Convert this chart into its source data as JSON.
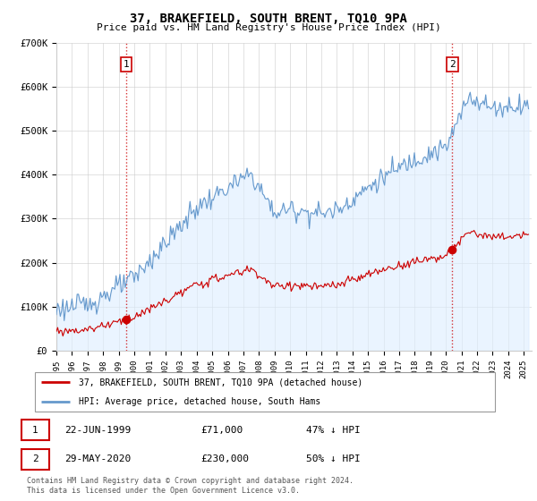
{
  "title": "37, BRAKEFIELD, SOUTH BRENT, TQ10 9PA",
  "subtitle": "Price paid vs. HM Land Registry's House Price Index (HPI)",
  "legend_line1": "37, BRAKEFIELD, SOUTH BRENT, TQ10 9PA (detached house)",
  "legend_line2": "HPI: Average price, detached house, South Hams",
  "marker1_date": "22-JUN-1999",
  "marker1_price": "£71,000",
  "marker1_hpi": "47% ↓ HPI",
  "marker2_date": "29-MAY-2020",
  "marker2_price": "£230,000",
  "marker2_hpi": "50% ↓ HPI",
  "footer": "Contains HM Land Registry data © Crown copyright and database right 2024.\nThis data is licensed under the Open Government Licence v3.0.",
  "red_color": "#cc0000",
  "blue_color": "#6699cc",
  "blue_fill": "#ddeeff",
  "ylim": [
    0,
    700000
  ],
  "xlim_start": 1995.0,
  "xlim_end": 2025.5,
  "marker1_x": 1999.47,
  "marker1_y": 71000,
  "marker2_x": 2020.41,
  "marker2_y": 230000
}
